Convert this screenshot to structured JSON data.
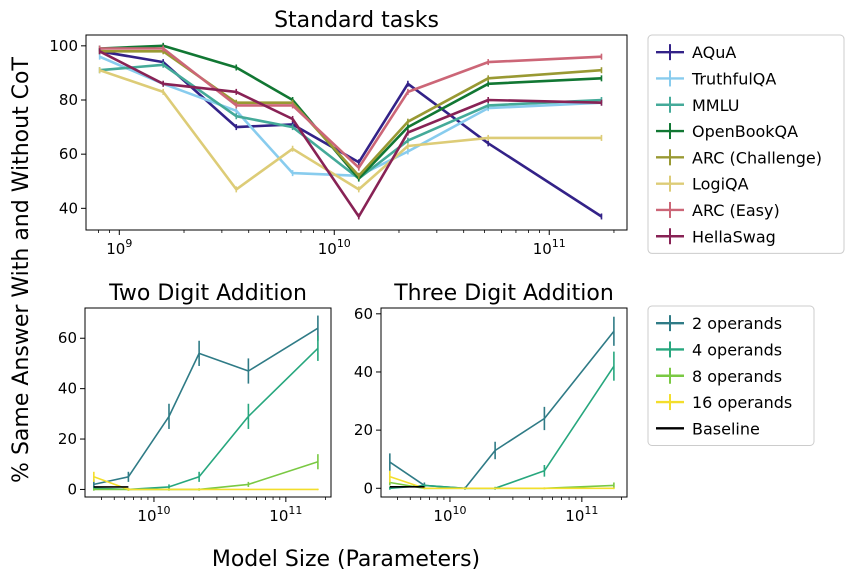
{
  "figure": {
    "ylabel": "% Same Answer With and Without CoT",
    "xlabel": "Model Size (Parameters)"
  },
  "chart_data": [
    {
      "type": "line",
      "title": "Standard tasks",
      "xscale": "log",
      "xlim": [
        700000000,
        230000000000
      ],
      "ylim": [
        32,
        104
      ],
      "yticks": [
        40,
        60,
        80,
        100
      ],
      "xticks": [
        {
          "value": 1000000000,
          "base": "10",
          "exp": "9"
        },
        {
          "value": 10000000000,
          "base": "10",
          "exp": "10"
        },
        {
          "value": 100000000000,
          "base": "10",
          "exp": "11"
        }
      ],
      "x": [
        810000000,
        1600000000,
        3500000000,
        6400000000,
        13000000000,
        22000000000,
        52000000000,
        175000000000
      ],
      "legend_position": "outside-right",
      "series": [
        {
          "name": "AQuA",
          "color": "#332288",
          "values": [
            98,
            94,
            70,
            71,
            57,
            86,
            64,
            37
          ]
        },
        {
          "name": "TruthfulQA",
          "color": "#88CCEE",
          "values": [
            96,
            86,
            76,
            53,
            52,
            61,
            77,
            79
          ]
        },
        {
          "name": "MMLU",
          "color": "#44AA99",
          "values": [
            91,
            93,
            74,
            70,
            51,
            65,
            78,
            80
          ]
        },
        {
          "name": "OpenBookQA",
          "color": "#117733",
          "values": [
            99,
            100,
            92,
            80,
            51,
            70,
            86,
            88
          ]
        },
        {
          "name": "ARC (Challenge)",
          "color": "#999933",
          "values": [
            98,
            98,
            79,
            79,
            52,
            72,
            88,
            91
          ]
        },
        {
          "name": "LogiQA",
          "color": "#DDCC77",
          "values": [
            91,
            83,
            47,
            62,
            47,
            63,
            66,
            66
          ]
        },
        {
          "name": "ARC (Easy)",
          "color": "#CC6677",
          "values": [
            99,
            99,
            78,
            78,
            55,
            83,
            94,
            96
          ]
        },
        {
          "name": "HellaSwag",
          "color": "#882255",
          "values": [
            98,
            86,
            83,
            73,
            37,
            68,
            80,
            79
          ]
        }
      ]
    },
    {
      "type": "line",
      "title": "Two Digit Addition",
      "xscale": "log",
      "xlim": [
        3000000000,
        220000000000
      ],
      "ylim": [
        -3,
        72
      ],
      "yticks": [
        0,
        20,
        40,
        60
      ],
      "xticks": [
        {
          "value": 10000000000,
          "base": "10",
          "exp": "10"
        },
        {
          "value": 100000000000,
          "base": "10",
          "exp": "11"
        }
      ],
      "series": [
        {
          "name": "2 operands",
          "color": "#2F7B86",
          "x": [
            3500000000,
            6400000000,
            13000000000,
            22000000000,
            52000000000,
            175000000000
          ],
          "values": [
            2,
            5,
            29,
            54,
            47,
            64
          ],
          "errors": [
            2,
            2,
            5,
            5,
            5,
            5
          ]
        },
        {
          "name": "4 operands",
          "color": "#27A77E",
          "x": [
            3500000000,
            6400000000,
            13000000000,
            22000000000,
            52000000000,
            175000000000
          ],
          "values": [
            0.5,
            0,
            1,
            5,
            29,
            56
          ],
          "errors": [
            0.5,
            0.5,
            1,
            2,
            5,
            5
          ]
        },
        {
          "name": "8 operands",
          "color": "#7AC943",
          "x": [
            3500000000,
            6400000000,
            13000000000,
            22000000000,
            52000000000,
            175000000000
          ],
          "values": [
            0,
            0,
            0,
            0,
            2,
            11
          ],
          "errors": [
            0.5,
            0.5,
            0.5,
            0.5,
            1,
            3
          ]
        },
        {
          "name": "16 operands",
          "color": "#F3DE2C",
          "x": [
            3500000000,
            6400000000,
            13000000000,
            22000000000,
            52000000000,
            175000000000
          ],
          "values": [
            5,
            0,
            0,
            0,
            0,
            0
          ],
          "errors": [
            2,
            0.5,
            0.3,
            0.3,
            0.3,
            0.3
          ]
        },
        {
          "name": "Baseline",
          "color": "#000000",
          "x": [
            3500000000,
            6400000000
          ],
          "values": [
            1,
            1
          ],
          "errors": []
        }
      ]
    },
    {
      "type": "line",
      "title": "Three Digit Addition",
      "xscale": "log",
      "xlim": [
        3000000000,
        220000000000
      ],
      "ylim": [
        -3,
        62
      ],
      "yticks": [
        0,
        20,
        40,
        60
      ],
      "xticks": [
        {
          "value": 10000000000,
          "base": "10",
          "exp": "10"
        },
        {
          "value": 100000000000,
          "base": "10",
          "exp": "11"
        }
      ],
      "series": [
        {
          "name": "2 operands",
          "color": "#2F7B86",
          "x": [
            3500000000,
            6400000000,
            13000000000,
            22000000000,
            52000000000,
            175000000000
          ],
          "values": [
            9,
            1,
            0,
            13,
            24,
            54
          ],
          "errors": [
            3,
            1,
            0.5,
            3,
            4,
            5
          ]
        },
        {
          "name": "4 operands",
          "color": "#27A77E",
          "x": [
            3500000000,
            6400000000,
            13000000000,
            22000000000,
            52000000000,
            175000000000
          ],
          "values": [
            0,
            1,
            0,
            0,
            6,
            42
          ],
          "errors": [
            0.5,
            0.5,
            0.3,
            0.5,
            2,
            5
          ]
        },
        {
          "name": "8 operands",
          "color": "#7AC943",
          "x": [
            3500000000,
            6400000000,
            13000000000,
            22000000000,
            52000000000,
            175000000000
          ],
          "values": [
            2,
            0,
            0,
            0,
            0,
            1
          ],
          "errors": [
            1,
            0.3,
            0.3,
            0.3,
            0.3,
            1
          ]
        },
        {
          "name": "16 operands",
          "color": "#F3DE2C",
          "x": [
            3500000000,
            6400000000,
            13000000000,
            22000000000,
            52000000000,
            175000000000
          ],
          "values": [
            4,
            0,
            0,
            0,
            0,
            0
          ],
          "errors": [
            2,
            0.3,
            0.3,
            0.3,
            0.3,
            0.3
          ]
        },
        {
          "name": "Baseline",
          "color": "#000000",
          "x": [
            3500000000,
            6400000000
          ],
          "values": [
            0.5,
            0.5
          ],
          "errors": []
        }
      ],
      "legend": [
        {
          "name": "2 operands",
          "color": "#2F7B86",
          "errorbar": true
        },
        {
          "name": "4 operands",
          "color": "#27A77E",
          "errorbar": true
        },
        {
          "name": "8 operands",
          "color": "#7AC943",
          "errorbar": true
        },
        {
          "name": "16 operands",
          "color": "#F3DE2C",
          "errorbar": true
        },
        {
          "name": "Baseline",
          "color": "#000000",
          "errorbar": false
        }
      ]
    }
  ]
}
